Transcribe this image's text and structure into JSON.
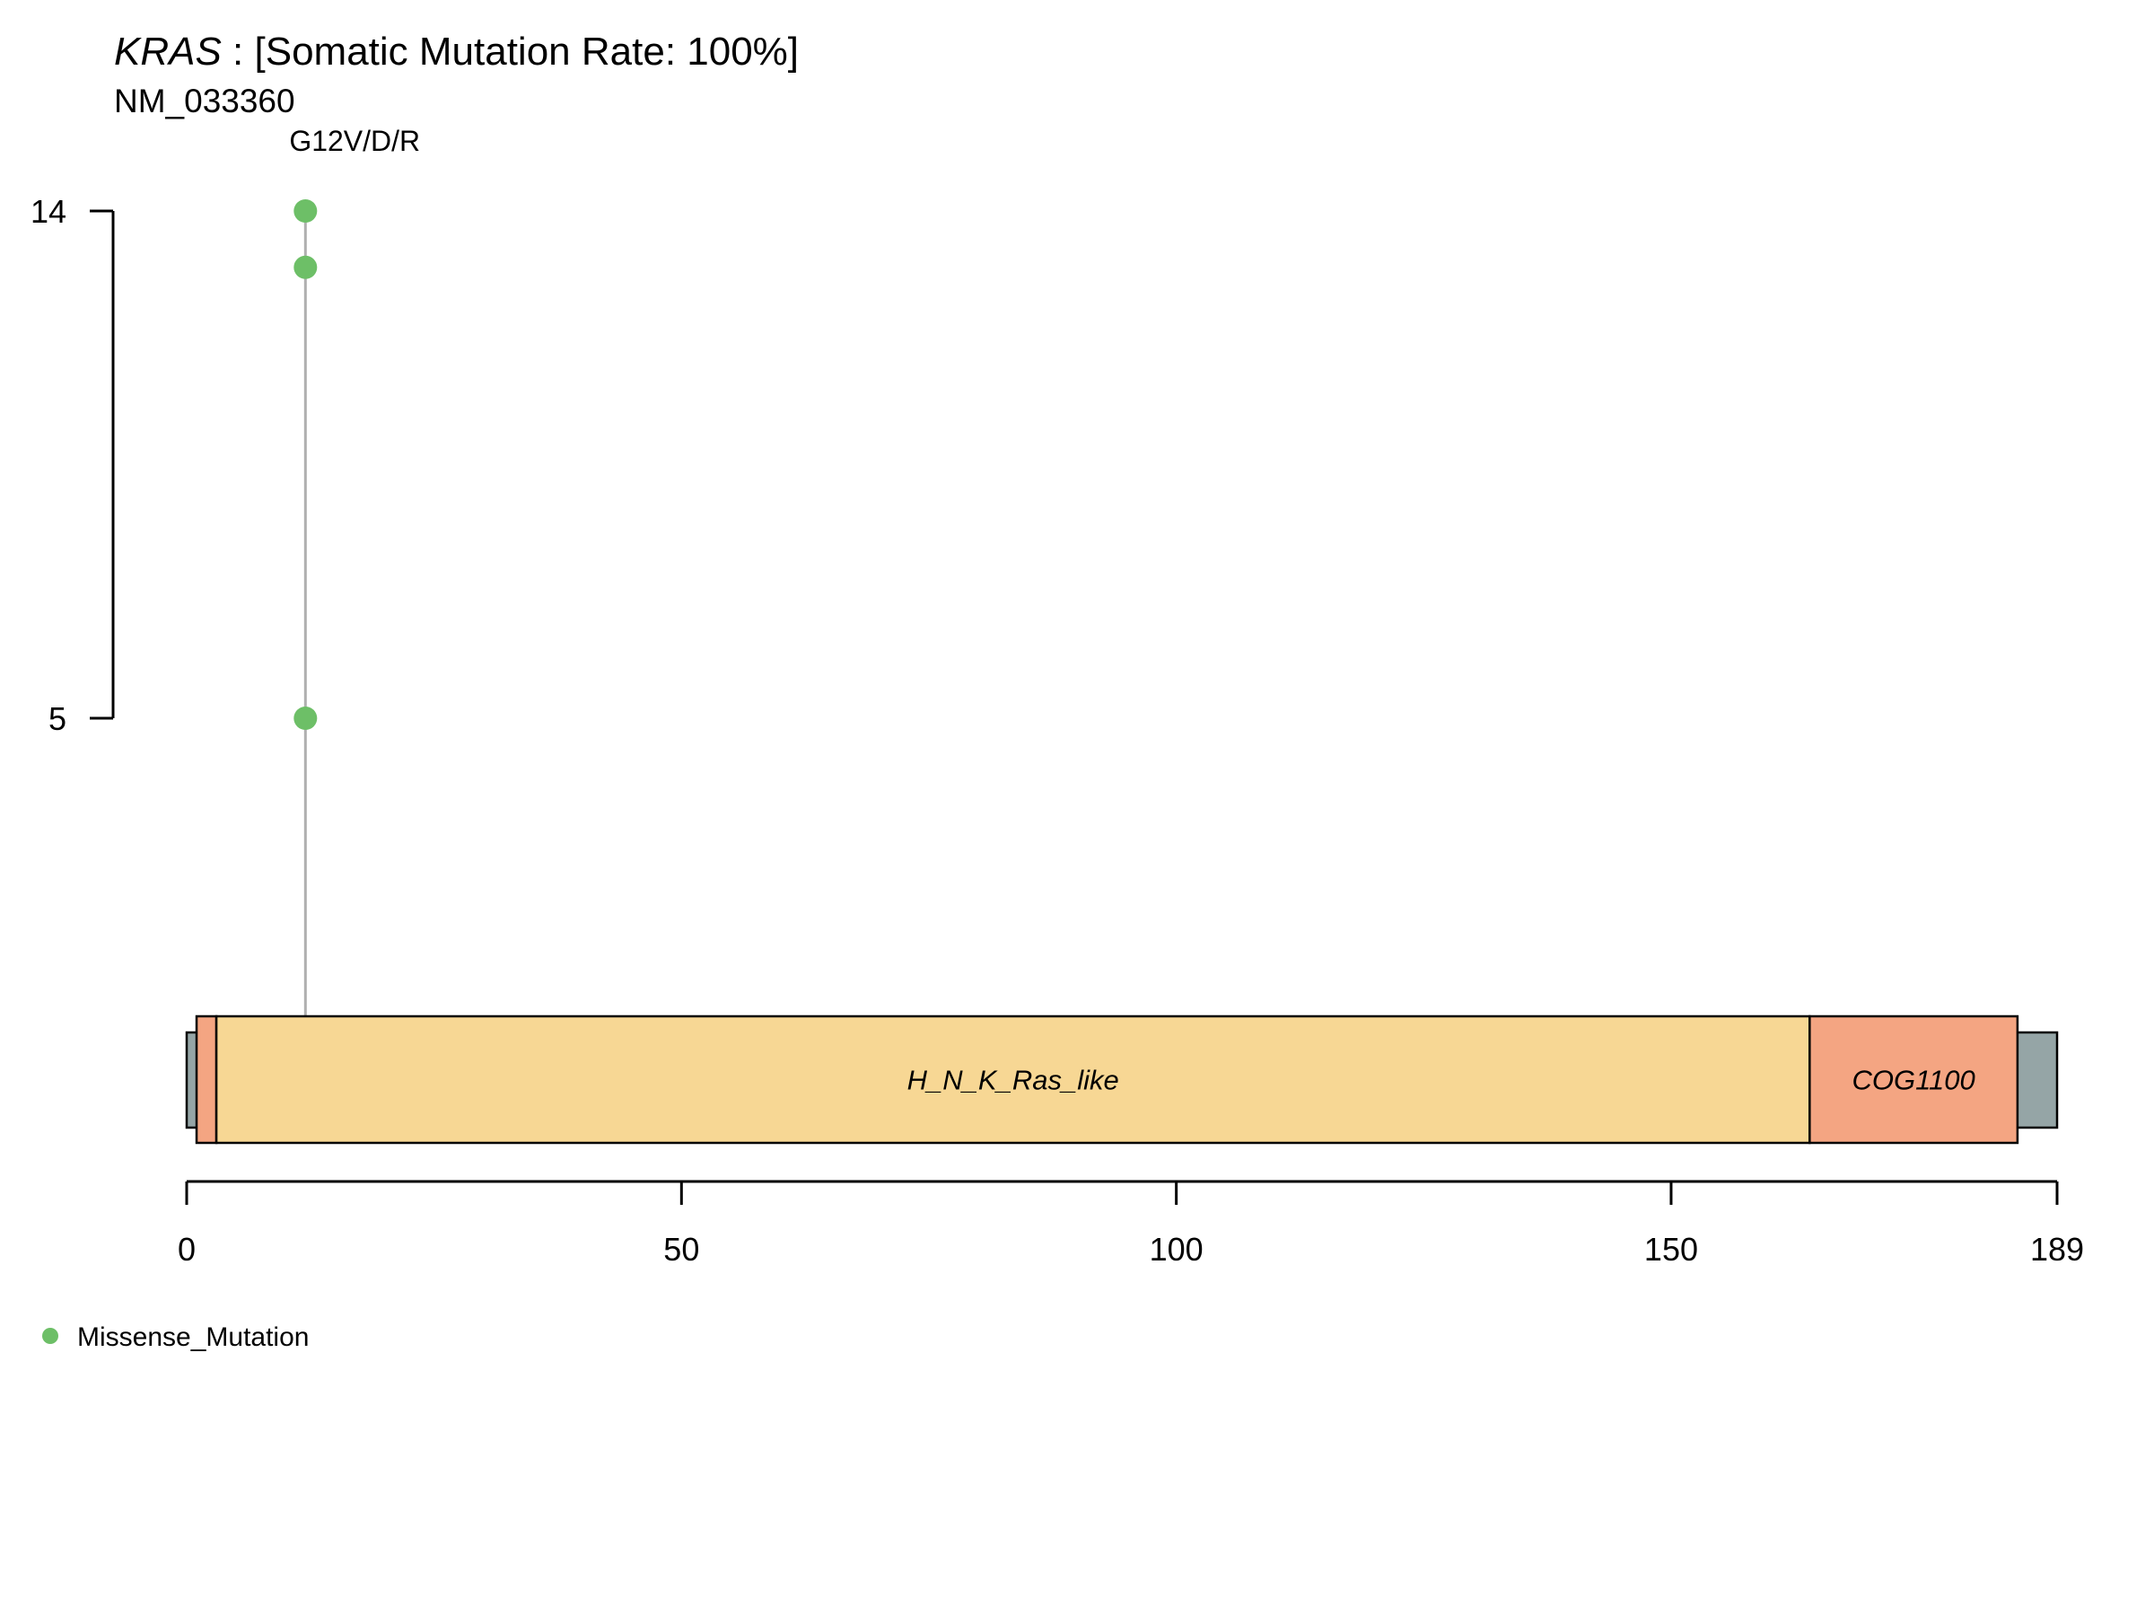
{
  "chart_data": {
    "type": "lollipop",
    "title": {
      "gene": "KRAS",
      "rest": " : [Somatic Mutation Rate: 100%]"
    },
    "subtitle": "NM_033360",
    "protein_length": 189,
    "x_ticks": [
      0,
      50,
      100,
      150,
      189
    ],
    "y_ticks": [
      5,
      14
    ],
    "y_range": [
      5,
      14
    ],
    "mutation_labels": [
      {
        "text": "G12V/D/R",
        "position": 12
      }
    ],
    "points": [
      {
        "position": 12,
        "count": 14,
        "type": "Missense_Mutation"
      },
      {
        "position": 12,
        "count": 13,
        "type": "Missense_Mutation"
      },
      {
        "position": 12,
        "count": 5,
        "type": "Missense_Mutation"
      }
    ],
    "domains": [
      {
        "name": "",
        "start": 1,
        "end": 3,
        "color": "#F4A582"
      },
      {
        "name": "H_N_K_Ras_like",
        "start": 3,
        "end": 164,
        "color": "#F7D794"
      },
      {
        "name": "COG1100",
        "start": 164,
        "end": 185,
        "color": "#F4A582"
      }
    ],
    "backbone_color": "#95A5A6",
    "stem_color": "#B0B0B0",
    "legend": [
      {
        "label": "Missense_Mutation",
        "color": "#6DBF67"
      }
    ]
  }
}
